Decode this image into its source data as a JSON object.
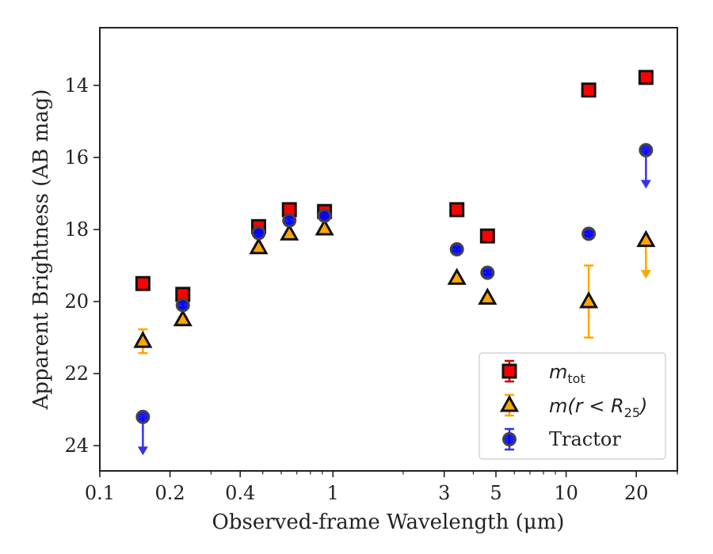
{
  "chart_data": {
    "type": "scatter",
    "xscale": "log",
    "yaxis_inverted": true,
    "xlabel": "Observed-frame Wavelength (μm)",
    "ylabel": "Apparent Brightness (AB mag)",
    "xlim": [
      0.1,
      30
    ],
    "ylim": [
      24.7,
      12.4
    ],
    "xticks": [
      {
        "value": 0.1,
        "label": "0.1"
      },
      {
        "value": 0.2,
        "label": "0.2"
      },
      {
        "value": 0.4,
        "label": "0.4"
      },
      {
        "value": 1,
        "label": "1"
      },
      {
        "value": 3,
        "label": "3"
      },
      {
        "value": 5,
        "label": "5"
      },
      {
        "value": 10,
        "label": "10"
      },
      {
        "value": 20,
        "label": "20"
      }
    ],
    "yticks": [
      {
        "value": 14,
        "label": "14"
      },
      {
        "value": 16,
        "label": "16"
      },
      {
        "value": 18,
        "label": "18"
      },
      {
        "value": 20,
        "label": "20"
      },
      {
        "value": 22,
        "label": "22"
      },
      {
        "value": 24,
        "label": "24"
      }
    ],
    "legend_position": "bottom-right",
    "series": [
      {
        "name": "m_tot",
        "marker": "square",
        "color": "#ff0000",
        "errcolor": "#cc0000",
        "points": [
          {
            "x": 0.153,
            "y": 19.5,
            "err": 0.1
          },
          {
            "x": 0.227,
            "y": 19.8,
            "err": 0.1
          },
          {
            "x": 0.48,
            "y": 17.92,
            "err": 0.1
          },
          {
            "x": 0.65,
            "y": 17.45,
            "err": 0.1
          },
          {
            "x": 0.92,
            "y": 17.5,
            "err": 0.1
          },
          {
            "x": 3.4,
            "y": 17.45,
            "err": 0.05
          },
          {
            "x": 4.6,
            "y": 18.18,
            "err": 0.05
          },
          {
            "x": 12.5,
            "y": 14.13,
            "err": 0.05
          },
          {
            "x": 22.0,
            "y": 13.78,
            "err": 0.05
          }
        ]
      },
      {
        "name": "m(r < R25)",
        "marker": "triangle",
        "color": "#ffa500",
        "errcolor": "#ffa500",
        "points": [
          {
            "x": 0.153,
            "y": 21.1,
            "err": 0.33
          },
          {
            "x": 0.227,
            "y": 20.5,
            "err": 0.05
          },
          {
            "x": 0.48,
            "y": 18.5,
            "err": 0.05
          },
          {
            "x": 0.65,
            "y": 18.12,
            "err": 0.05
          },
          {
            "x": 0.92,
            "y": 17.98,
            "err": 0.05
          },
          {
            "x": 3.4,
            "y": 19.35,
            "err": 0.05
          },
          {
            "x": 4.6,
            "y": 19.9,
            "err": 0.05
          },
          {
            "x": 12.5,
            "y": 20.0,
            "err": 1.0
          },
          {
            "x": 22.0,
            "y": 18.3,
            "upper_limit": true
          }
        ]
      },
      {
        "name": "Tractor",
        "marker": "circle",
        "color": "#0000ff",
        "errcolor": "#3333ee",
        "points": [
          {
            "x": 0.153,
            "y": 23.2,
            "upper_limit": true
          },
          {
            "x": 0.227,
            "y": 20.1,
            "err": 0.08
          },
          {
            "x": 0.48,
            "y": 18.1,
            "err": 0.08
          },
          {
            "x": 0.65,
            "y": 17.75,
            "err": 0.08
          },
          {
            "x": 0.92,
            "y": 17.62,
            "err": 0.08
          },
          {
            "x": 3.4,
            "y": 18.55,
            "err": 0.05
          },
          {
            "x": 4.6,
            "y": 19.2,
            "err": 0.05
          },
          {
            "x": 12.5,
            "y": 18.12,
            "err": 0.05
          },
          {
            "x": 22.0,
            "y": 15.8,
            "upper_limit": true
          }
        ]
      }
    ]
  },
  "legend": {
    "entries": [
      {
        "math": "m",
        "sub": "tot",
        "text": ""
      },
      {
        "math": "m(r < R",
        "sub": "25",
        "text": ")"
      },
      {
        "math": "",
        "sub": "",
        "text": "Tractor"
      }
    ]
  }
}
